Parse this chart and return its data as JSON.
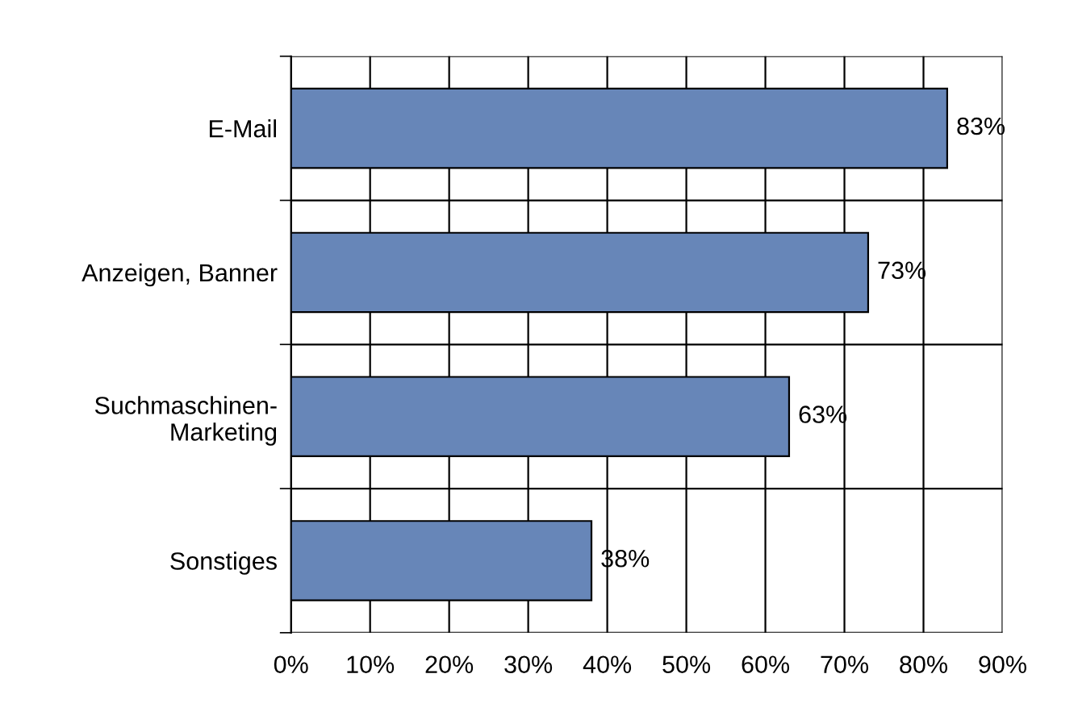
{
  "chart_data": {
    "type": "bar",
    "orientation": "horizontal",
    "categories": [
      "E-Mail",
      "Anzeigen, Banner",
      "Suchmaschinen-\nMarketing",
      "Sonstiges"
    ],
    "values": [
      83,
      73,
      63,
      38
    ],
    "value_labels": [
      "83%",
      "73%",
      "63%",
      "38%"
    ],
    "color": "#6786b8",
    "xlim": [
      0,
      90
    ],
    "xticks": [
      {
        "value": 0,
        "label": "0%"
      },
      {
        "value": 10,
        "label": "10%"
      },
      {
        "value": 20,
        "label": "20%"
      },
      {
        "value": 30,
        "label": "30%"
      },
      {
        "value": 40,
        "label": "40%"
      },
      {
        "value": 50,
        "label": "50%"
      },
      {
        "value": 60,
        "label": "60%"
      },
      {
        "value": 70,
        "label": "70%"
      },
      {
        "value": 80,
        "label": "80%"
      },
      {
        "value": 90,
        "label": "90%"
      }
    ],
    "grid": true,
    "legend": false
  }
}
